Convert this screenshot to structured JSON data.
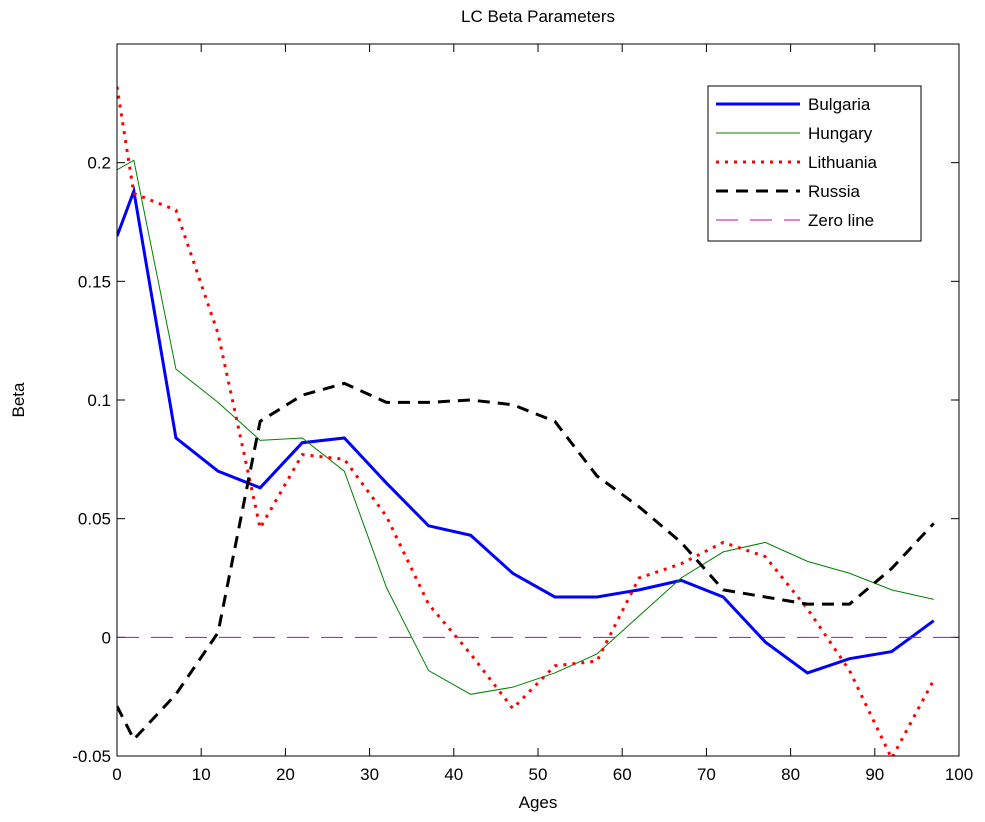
{
  "chart_data": {
    "type": "line",
    "title": "LC Beta Parameters",
    "x_label": "Ages",
    "y_label": "Beta",
    "xlim": [
      0,
      100
    ],
    "ylim": [
      -0.05,
      0.25
    ],
    "xticks": [
      0,
      10,
      20,
      30,
      40,
      50,
      60,
      70,
      80,
      90,
      100
    ],
    "yticks": [
      -0.05,
      0,
      0.05,
      0.1,
      0.15,
      0.2
    ],
    "legend": "upper right",
    "grid": false,
    "series": [
      {
        "name": "Bulgaria",
        "color": "#0000ff",
        "linestyle": "-",
        "linewidth": 3,
        "x": [
          0,
          2,
          7,
          12,
          17,
          22,
          27,
          32,
          37,
          42,
          47,
          52,
          57,
          62,
          67,
          72,
          77,
          82,
          87,
          92,
          97
        ],
        "values": [
          0.169,
          0.188,
          0.084,
          0.07,
          0.063,
          0.082,
          0.084,
          0.065,
          0.047,
          0.043,
          0.027,
          0.017,
          0.017,
          0.02,
          0.024,
          0.017,
          -0.002,
          -0.015,
          -0.009,
          -0.006,
          0.007
        ]
      },
      {
        "name": "Hungary",
        "color": "#008000",
        "linestyle": "-",
        "linewidth": 1,
        "x": [
          0,
          2,
          7,
          12,
          17,
          22,
          27,
          32,
          37,
          42,
          47,
          52,
          57,
          62,
          67,
          72,
          77,
          82,
          87,
          92,
          97
        ],
        "values": [
          0.197,
          0.201,
          0.113,
          0.099,
          0.083,
          0.084,
          0.07,
          0.021,
          -0.014,
          -0.024,
          -0.021,
          -0.015,
          -0.007,
          0.009,
          0.025,
          0.036,
          0.04,
          0.032,
          0.027,
          0.02,
          0.016
        ]
      },
      {
        "name": "Lithuania",
        "color": "#ff0000",
        "linestyle": ":",
        "linewidth": 3,
        "x": [
          0,
          2,
          7,
          12,
          17,
          22,
          27,
          32,
          37,
          42,
          47,
          52,
          57,
          62,
          67,
          72,
          77,
          82,
          87,
          92,
          97
        ],
        "values": [
          0.232,
          0.187,
          0.18,
          0.128,
          0.046,
          0.077,
          0.075,
          0.051,
          0.014,
          -0.007,
          -0.03,
          -0.012,
          -0.01,
          0.025,
          0.031,
          0.04,
          0.034,
          0.012,
          -0.014,
          -0.051,
          -0.018
        ]
      },
      {
        "name": "Russia",
        "color": "#000000",
        "linestyle": "--",
        "linewidth": 3,
        "x": [
          0,
          2,
          7,
          12,
          17,
          22,
          27,
          32,
          37,
          42,
          47,
          52,
          57,
          62,
          67,
          72,
          77,
          82,
          87,
          92,
          97
        ],
        "values": [
          -0.029,
          -0.043,
          -0.024,
          0.002,
          0.091,
          0.102,
          0.107,
          0.099,
          0.099,
          0.1,
          0.098,
          0.091,
          0.068,
          0.055,
          0.04,
          0.02,
          0.017,
          0.014,
          0.014,
          0.029,
          0.048
        ]
      },
      {
        "name": "Zero line",
        "color": "#bf00bf",
        "linestyle": "--",
        "linewidth": 1,
        "x": [
          0,
          100
        ],
        "values": [
          0,
          0
        ]
      }
    ]
  }
}
